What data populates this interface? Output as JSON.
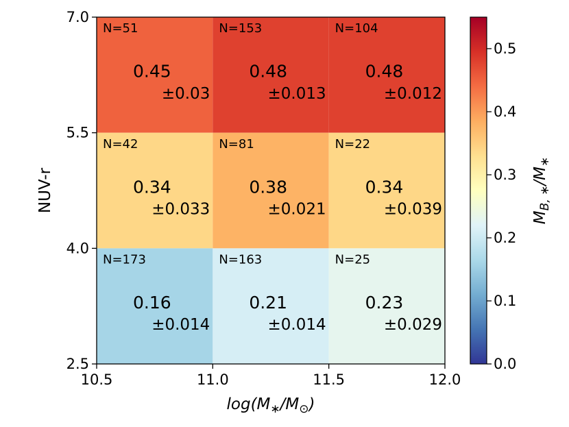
{
  "chart_data": {
    "type": "heatmap",
    "title": "",
    "xlabel": "log(M∗/M⊙)",
    "ylabel": "NUV-r",
    "x_edges": [
      10.5,
      11.0,
      11.5,
      12.0
    ],
    "y_edges": [
      2.5,
      4.0,
      5.5,
      7.0
    ],
    "x_ticks": [
      "10.5",
      "11.0",
      "11.5",
      "12.0"
    ],
    "y_ticks": [
      "2.5",
      "4.0",
      "5.5",
      "7.0"
    ],
    "xlim": [
      10.5,
      12.0
    ],
    "ylim": [
      2.5,
      7.0
    ],
    "colorbar": {
      "label": "M_{B,∗}/M∗",
      "range": [
        0.0,
        0.55
      ],
      "colormap": "RdYlBu_r",
      "ticks": [
        {
          "value": 0.0,
          "label": "0.0"
        },
        {
          "value": 0.1,
          "label": "0.1"
        },
        {
          "value": 0.2,
          "label": "0.2"
        },
        {
          "value": 0.3,
          "label": "0.3"
        },
        {
          "value": 0.4,
          "label": "0.4"
        },
        {
          "value": 0.5,
          "label": "0.5"
        }
      ]
    },
    "cells": [
      {
        "x": [
          10.5,
          11.0
        ],
        "y": [
          5.5,
          7.0
        ],
        "n": "N=51",
        "value": 0.45,
        "value_label": "0.45",
        "error_label": "±0.03"
      },
      {
        "x": [
          11.0,
          11.5
        ],
        "y": [
          5.5,
          7.0
        ],
        "n": "N=153",
        "value": 0.48,
        "value_label": "0.48",
        "error_label": "±0.013"
      },
      {
        "x": [
          11.5,
          12.0
        ],
        "y": [
          5.5,
          7.0
        ],
        "n": "N=104",
        "value": 0.48,
        "value_label": "0.48",
        "error_label": "±0.012"
      },
      {
        "x": [
          10.5,
          11.0
        ],
        "y": [
          4.0,
          5.5
        ],
        "n": "N=42",
        "value": 0.34,
        "value_label": "0.34",
        "error_label": "±0.033"
      },
      {
        "x": [
          11.0,
          11.5
        ],
        "y": [
          4.0,
          5.5
        ],
        "n": "N=81",
        "value": 0.38,
        "value_label": "0.38",
        "error_label": "±0.021"
      },
      {
        "x": [
          11.5,
          12.0
        ],
        "y": [
          4.0,
          5.5
        ],
        "n": "N=22",
        "value": 0.34,
        "value_label": "0.34",
        "error_label": "±0.039"
      },
      {
        "x": [
          10.5,
          11.0
        ],
        "y": [
          2.5,
          4.0
        ],
        "n": "N=173",
        "value": 0.16,
        "value_label": "0.16",
        "error_label": "±0.014"
      },
      {
        "x": [
          11.0,
          11.5
        ],
        "y": [
          2.5,
          4.0
        ],
        "n": "N=163",
        "value": 0.21,
        "value_label": "0.21",
        "error_label": "±0.014"
      },
      {
        "x": [
          11.5,
          12.0
        ],
        "y": [
          2.5,
          4.0
        ],
        "n": "N=25",
        "value": 0.23,
        "value_label": "0.23",
        "error_label": "±0.029"
      }
    ]
  }
}
